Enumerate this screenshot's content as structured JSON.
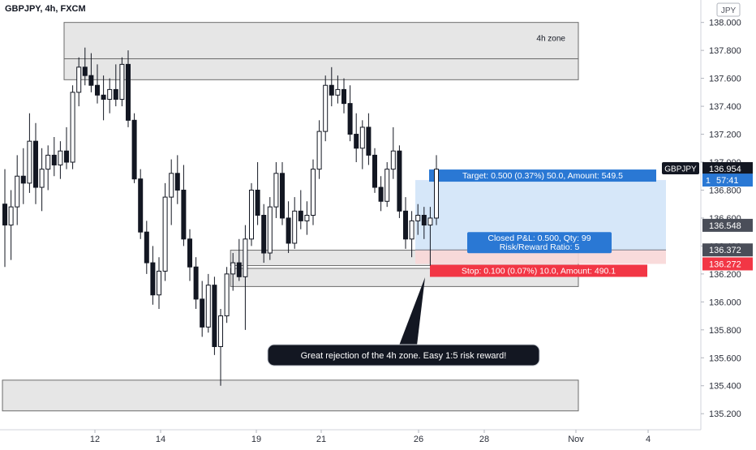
{
  "header": {
    "symbol_label": "GBPJPY, 4h, FXCM"
  },
  "currency_button": "JPY",
  "chart_data": {
    "type": "candlestick",
    "title": "GBPJPY, 4h, FXCM",
    "xlabel": "",
    "ylabel": "",
    "ylim": [
      135.12,
      138.12
    ],
    "y_ticks": [
      "135.200",
      "135.400",
      "135.600",
      "135.800",
      "136.000",
      "136.200",
      "136.400",
      "136.600",
      "136.800",
      "137.000",
      "137.200",
      "137.400",
      "137.600",
      "137.800",
      "138.000"
    ],
    "x_ticks": [
      "12",
      "14",
      "19",
      "21",
      "26",
      "28",
      "Nov",
      "4"
    ],
    "grid": false,
    "candles": [
      {
        "o": 136.7,
        "h": 136.95,
        "l": 136.25,
        "c": 136.55
      },
      {
        "o": 136.55,
        "h": 136.8,
        "l": 136.3,
        "c": 136.68
      },
      {
        "o": 136.68,
        "h": 137.05,
        "l": 136.55,
        "c": 136.9
      },
      {
        "o": 136.9,
        "h": 137.1,
        "l": 136.7,
        "c": 136.85
      },
      {
        "o": 136.85,
        "h": 137.35,
        "l": 136.78,
        "c": 137.15
      },
      {
        "o": 137.15,
        "h": 137.28,
        "l": 136.7,
        "c": 136.82
      },
      {
        "o": 136.82,
        "h": 137.1,
        "l": 136.65,
        "c": 136.95
      },
      {
        "o": 136.95,
        "h": 137.12,
        "l": 136.8,
        "c": 137.05
      },
      {
        "o": 137.05,
        "h": 137.18,
        "l": 136.9,
        "c": 136.98
      },
      {
        "o": 136.98,
        "h": 137.15,
        "l": 136.88,
        "c": 137.08
      },
      {
        "o": 137.08,
        "h": 137.25,
        "l": 136.95,
        "c": 137.0
      },
      {
        "o": 137.0,
        "h": 137.55,
        "l": 136.95,
        "c": 137.5
      },
      {
        "o": 137.5,
        "h": 137.75,
        "l": 137.4,
        "c": 137.68
      },
      {
        "o": 137.68,
        "h": 137.82,
        "l": 137.55,
        "c": 137.62
      },
      {
        "o": 137.62,
        "h": 137.78,
        "l": 137.5,
        "c": 137.55
      },
      {
        "o": 137.55,
        "h": 137.7,
        "l": 137.42,
        "c": 137.48
      },
      {
        "o": 137.48,
        "h": 137.62,
        "l": 137.3,
        "c": 137.45
      },
      {
        "o": 137.45,
        "h": 137.6,
        "l": 137.35,
        "c": 137.52
      },
      {
        "o": 137.52,
        "h": 137.7,
        "l": 137.4,
        "c": 137.45
      },
      {
        "o": 137.45,
        "h": 137.75,
        "l": 137.4,
        "c": 137.7
      },
      {
        "o": 137.7,
        "h": 137.8,
        "l": 137.25,
        "c": 137.3
      },
      {
        "o": 137.3,
        "h": 137.35,
        "l": 136.85,
        "c": 136.88
      },
      {
        "o": 136.88,
        "h": 136.95,
        "l": 136.45,
        "c": 136.5
      },
      {
        "o": 136.5,
        "h": 136.58,
        "l": 136.2,
        "c": 136.28
      },
      {
        "o": 136.28,
        "h": 136.4,
        "l": 135.98,
        "c": 136.05
      },
      {
        "o": 136.05,
        "h": 136.32,
        "l": 135.95,
        "c": 136.22
      },
      {
        "o": 136.22,
        "h": 136.85,
        "l": 136.15,
        "c": 136.75
      },
      {
        "o": 136.75,
        "h": 137.02,
        "l": 136.55,
        "c": 136.92
      },
      {
        "o": 136.92,
        "h": 137.05,
        "l": 136.7,
        "c": 136.8
      },
      {
        "o": 136.8,
        "h": 136.98,
        "l": 136.4,
        "c": 136.45
      },
      {
        "o": 136.45,
        "h": 136.52,
        "l": 136.15,
        "c": 136.25
      },
      {
        "o": 136.25,
        "h": 136.32,
        "l": 135.95,
        "c": 136.02
      },
      {
        "o": 136.02,
        "h": 136.15,
        "l": 135.75,
        "c": 135.82
      },
      {
        "o": 135.82,
        "h": 136.2,
        "l": 135.78,
        "c": 136.12
      },
      {
        "o": 136.12,
        "h": 136.18,
        "l": 135.62,
        "c": 135.68
      },
      {
        "o": 135.68,
        "h": 135.95,
        "l": 135.4,
        "c": 135.9
      },
      {
        "o": 135.9,
        "h": 136.25,
        "l": 135.85,
        "c": 136.2
      },
      {
        "o": 136.2,
        "h": 136.35,
        "l": 136.08,
        "c": 136.28
      },
      {
        "o": 136.28,
        "h": 136.45,
        "l": 136.15,
        "c": 136.18
      },
      {
        "o": 136.18,
        "h": 136.55,
        "l": 135.8,
        "c": 136.45
      },
      {
        "o": 136.45,
        "h": 136.85,
        "l": 136.4,
        "c": 136.8
      },
      {
        "o": 136.8,
        "h": 137.0,
        "l": 136.55,
        "c": 136.62
      },
      {
        "o": 136.62,
        "h": 136.7,
        "l": 136.28,
        "c": 136.35
      },
      {
        "o": 136.35,
        "h": 136.75,
        "l": 136.3,
        "c": 136.68
      },
      {
        "o": 136.68,
        "h": 137.0,
        "l": 136.6,
        "c": 136.92
      },
      {
        "o": 136.92,
        "h": 137.0,
        "l": 136.55,
        "c": 136.6
      },
      {
        "o": 136.6,
        "h": 136.72,
        "l": 136.35,
        "c": 136.42
      },
      {
        "o": 136.42,
        "h": 136.75,
        "l": 136.38,
        "c": 136.65
      },
      {
        "o": 136.65,
        "h": 136.8,
        "l": 136.52,
        "c": 136.58
      },
      {
        "o": 136.58,
        "h": 136.72,
        "l": 136.48,
        "c": 136.62
      },
      {
        "o": 136.62,
        "h": 137.02,
        "l": 136.55,
        "c": 136.95
      },
      {
        "o": 136.95,
        "h": 137.3,
        "l": 136.88,
        "c": 137.22
      },
      {
        "o": 137.22,
        "h": 137.62,
        "l": 137.15,
        "c": 137.55
      },
      {
        "o": 137.55,
        "h": 137.68,
        "l": 137.4,
        "c": 137.48
      },
      {
        "o": 137.48,
        "h": 137.62,
        "l": 137.42,
        "c": 137.52
      },
      {
        "o": 137.52,
        "h": 137.6,
        "l": 137.35,
        "c": 137.42
      },
      {
        "o": 137.42,
        "h": 137.55,
        "l": 137.15,
        "c": 137.2
      },
      {
        "o": 137.2,
        "h": 137.35,
        "l": 137.0,
        "c": 137.1
      },
      {
        "o": 137.1,
        "h": 137.3,
        "l": 136.95,
        "c": 137.25
      },
      {
        "o": 137.25,
        "h": 137.35,
        "l": 136.98,
        "c": 137.05
      },
      {
        "o": 137.05,
        "h": 137.1,
        "l": 136.78,
        "c": 136.82
      },
      {
        "o": 136.82,
        "h": 136.9,
        "l": 136.65,
        "c": 136.72
      },
      {
        "o": 136.72,
        "h": 137.0,
        "l": 136.68,
        "c": 136.95
      },
      {
        "o": 136.95,
        "h": 137.25,
        "l": 136.88,
        "c": 137.08
      },
      {
        "o": 137.08,
        "h": 137.12,
        "l": 136.6,
        "c": 136.65
      },
      {
        "o": 136.65,
        "h": 136.75,
        "l": 136.38,
        "c": 136.45
      },
      {
        "o": 136.45,
        "h": 136.65,
        "l": 136.32,
        "c": 136.58
      },
      {
        "o": 136.58,
        "h": 136.7,
        "l": 136.48,
        "c": 136.62
      },
      {
        "o": 136.62,
        "h": 136.68,
        "l": 136.45,
        "c": 136.55
      },
      {
        "o": 136.55,
        "h": 136.68,
        "l": 136.26,
        "c": 136.6
      },
      {
        "o": 136.6,
        "h": 137.05,
        "l": 136.55,
        "c": 136.95
      }
    ],
    "zones": [
      {
        "label": "4h zone",
        "top": 138.0,
        "bottom": 137.74,
        "i0": 10,
        "i1": "end"
      },
      {
        "label": "",
        "top": 137.74,
        "bottom": 137.59,
        "i0": 10,
        "i1": "end"
      },
      {
        "label": "",
        "top": 136.37,
        "bottom": 136.26,
        "i0": 37,
        "i1": "end"
      },
      {
        "label": "",
        "top": 136.24,
        "bottom": 136.11,
        "i0": 37,
        "i1": "end"
      },
      {
        "label": "",
        "top": 135.44,
        "bottom": 135.22,
        "i0": 0,
        "i1": "end"
      }
    ],
    "position": {
      "entry": 136.372,
      "target": 136.872,
      "stop": 136.272,
      "target_label": "Target: 0.500 (0.37%) 50.0, Amount: 549.5",
      "stop_label": "Stop: 0.100 (0.07%) 10.0, Amount: 490.1",
      "closed_label_1": "Closed P&L: 0.500, Qty: 99",
      "closed_label_2": "Risk/Reward Ratio: 5"
    },
    "price_tags": [
      {
        "text": "136.954",
        "value": 136.954,
        "kind": "current",
        "prefix": "GBPJPY"
      },
      {
        "text": "57:41",
        "value": 136.872,
        "kind": "countdown",
        "prefix": "1"
      },
      {
        "text": "136.548",
        "value": 136.548,
        "kind": "gray",
        "prefix": ""
      },
      {
        "text": "136.372",
        "value": 136.372,
        "kind": "gray",
        "prefix": ""
      },
      {
        "text": "136.272",
        "value": 136.272,
        "kind": "red",
        "prefix": ""
      }
    ],
    "annotation": "Great rejection of the 4h zone. Easy 1:5 risk reward!"
  },
  "colors": {
    "candle": "#131722",
    "zone_fill": "#e6e6e6",
    "zone_border": "#6b6b6b",
    "profit_fill": "#cfe3f8",
    "loss_fill": "#f8d7d7",
    "blue_label": "#2a78d4",
    "red_label": "#f23645",
    "dark_tag": "#131722",
    "gray_tag": "#4a4e59",
    "axis_text": "#2a2e39"
  }
}
